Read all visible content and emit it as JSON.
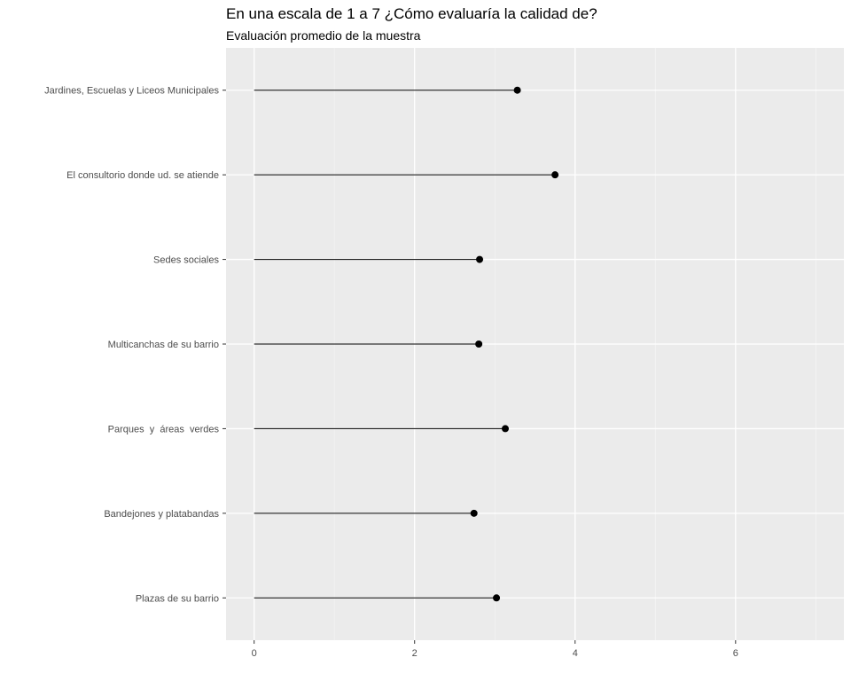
{
  "chart_data": {
    "type": "lollipop",
    "title": "En una escala de 1 a 7 ¿Cómo evaluaría la calidad de?",
    "subtitle": "Evaluación promedio de la muestra",
    "xlabel": "",
    "ylabel": "",
    "categories": [
      "Jardines, Escuelas y Liceos Municipales",
      "El consultorio donde ud. se atiende",
      "Sedes sociales",
      "Multicanchas de su barrio",
      "Parques  y  áreas  verdes",
      "Bandejones y platabandas",
      "Plazas de su barrio"
    ],
    "values": [
      3.28,
      3.75,
      2.81,
      2.8,
      3.13,
      2.74,
      3.02
    ],
    "xlim": [
      -0.35,
      7.35
    ],
    "xticks": [
      0,
      2,
      4,
      6
    ],
    "grid": true,
    "legend": "none",
    "colors": {
      "panel_background": "#ebebeb",
      "grid_major": "#ffffff",
      "grid_minor": "#f5f5f5",
      "segment": "#000000",
      "point": "#000000",
      "tick_text": "#4d4d4d"
    }
  }
}
